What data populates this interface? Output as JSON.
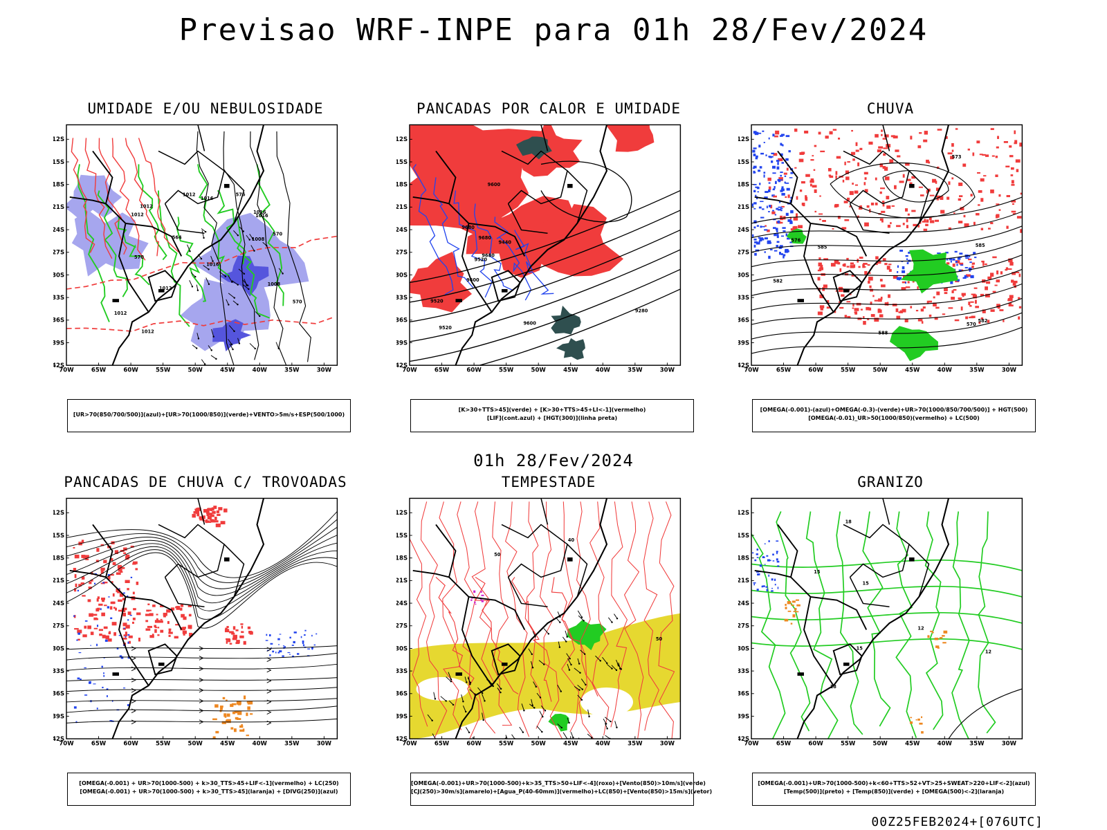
{
  "title": "Previsao WRF-INPE  para 01h 28/Fev/2024",
  "subtitle": "01h 28/Fev/2024",
  "footer": "00Z25FEB2024+[076UTC]",
  "axes": {
    "lat_ticks": [
      "12S",
      "15S",
      "18S",
      "21S",
      "24S",
      "27S",
      "30S",
      "33S",
      "36S",
      "39S",
      "42S"
    ],
    "lon_ticks": [
      "70W",
      "65W",
      "60W",
      "55W",
      "50W",
      "45W",
      "40W",
      "35W",
      "30W"
    ]
  },
  "colors": {
    "red": "#f03c3c",
    "green": "#22cc22",
    "blue": "#2244ee",
    "lavender": "#a6a6ee",
    "darkteal": "#2f4f4f",
    "yellow": "#e6d830",
    "orange": "#ee8822",
    "magenta": "#cc22cc"
  },
  "panels": [
    {
      "id": "umidade",
      "title": "UMIDADE E/OU NEBULOSIDADE",
      "legend": [
        "[UR>70(850/700/500)](azul)+[UR>70(1000/850)](verde)+VENTO>5m/s+ESP(500/1000)"
      ],
      "labels": [
        "1012",
        "1012",
        "1012",
        "1016",
        "1012",
        "1008",
        "1012",
        "1016",
        "1008",
        "1012",
        "1016",
        "1016",
        "570",
        "576",
        "570",
        "564",
        "570"
      ]
    },
    {
      "id": "pancadas-calor",
      "title": "PANCADAS POR CALOR E UMIDADE",
      "legend": [
        "[K>30+TTS>45](verde) + [K>30+TTS>45+LI<-1](vermelho)",
        "[LIF](cont.azul) + [HGT(300)](linha preta)"
      ],
      "labels": [
        "9600",
        "9680",
        "9680",
        "9600",
        "9520",
        "9440",
        "9280",
        "9520",
        "9680",
        "9600",
        "9520"
      ]
    },
    {
      "id": "chuva",
      "title": "CHUVA",
      "legend": [
        "[OMEGA(-0.001)-(azul)+OMEGA(-0.3)-(verde)+UR>70(1000/850/700/500)] + HGT(500)",
        "[OMEGA(-0.01)_UR>50(1000/850)(vermelho) + LC(500)"
      ],
      "labels": [
        "585",
        "582",
        "576",
        "573",
        "570",
        "585",
        "588",
        "582"
      ]
    },
    {
      "id": "trovoadas",
      "title": "PANCADAS DE CHUVA C/ TROVOADAS",
      "legend": [
        "[OMEGA(-0.001) + UR>70(1000-500) + k>30_TTS>45+LIF<-1](vermelho) + LC(250)",
        "[OMEGA(-0.001) + UR>70(1000-500) + k>30_TTS>45](laranja) + [DIVG(250)](azul)"
      ],
      "labels": []
    },
    {
      "id": "tempestade",
      "title": "TEMPESTADE",
      "legend": [
        "[OMEGA(-0.001)+UR>70(1000-500)+k>35_TTS>50+LIF<-4](roxo)+[Vento(850)>10m/s](verde)",
        "[CJ(250)>30m/s](amarelo)+[Agua_P(40-60mm)](vermelho)+LC(850)+[Vento(850)>15m/s](vetor)"
      ],
      "labels": [
        "50",
        "40",
        "50"
      ]
    },
    {
      "id": "granizo",
      "title": "GRANIZO",
      "legend": [
        "[OMEGA(-0.001)+UR>70(1000-500)+k<60+TTS>52+VT>25+SWEAT>220+LIF<-2](azul)",
        "[Temp(500)](preto) + [Temp(850)](verde) + [OMEGA(500)<-2](laranja)"
      ],
      "labels": [
        "18",
        "15",
        "12",
        "15",
        "18",
        "12",
        "15"
      ]
    }
  ]
}
